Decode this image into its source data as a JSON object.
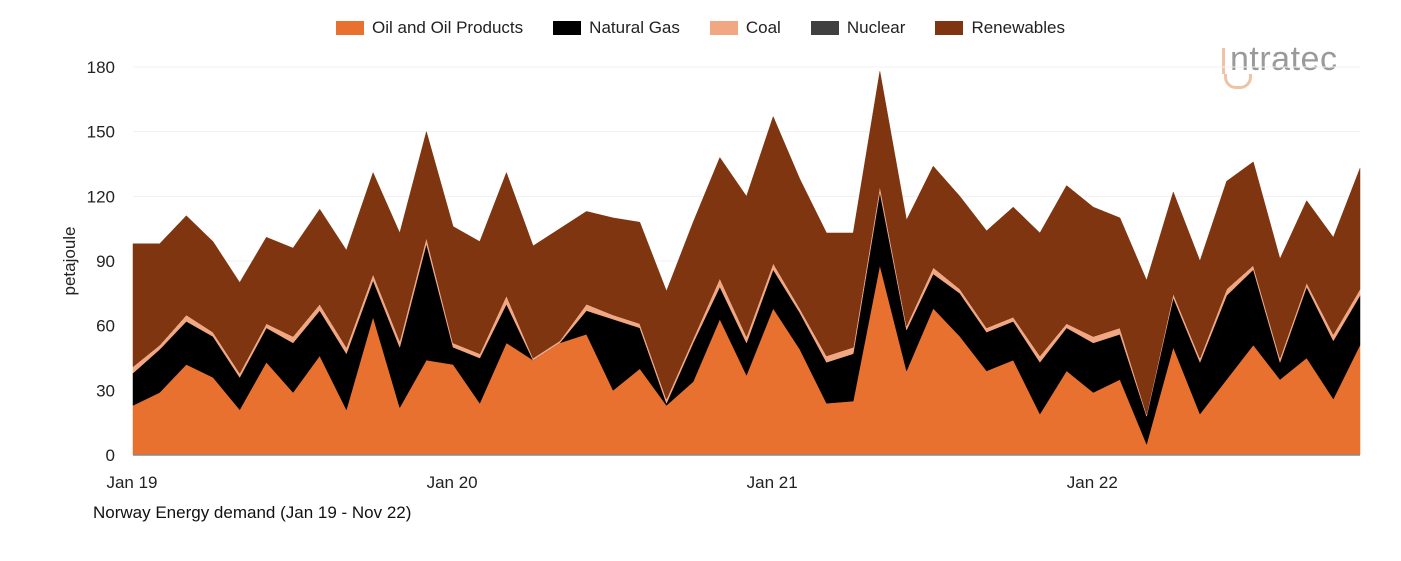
{
  "chart_data": {
    "type": "area",
    "stacked": true,
    "title": "Norway Energy demand (Jan 19 - Nov 22)",
    "xlabel": "",
    "ylabel": "petajoule",
    "ylim": [
      0,
      180
    ],
    "yticks": [
      0,
      30,
      60,
      90,
      120,
      150,
      180
    ],
    "xtick_labels": [
      {
        "label": "Jan 19",
        "month": "2019-01"
      },
      {
        "label": "Jan 20",
        "month": "2020-01"
      },
      {
        "label": "Jan 21",
        "month": "2021-01"
      },
      {
        "label": "Jan 22",
        "month": "2022-01"
      }
    ],
    "grid": true,
    "legend_position": "top",
    "x": [
      "2019-01",
      "2019-02",
      "2019-03",
      "2019-04",
      "2019-05",
      "2019-06",
      "2019-07",
      "2019-08",
      "2019-09",
      "2019-10",
      "2019-11",
      "2019-12",
      "2020-01",
      "2020-02",
      "2020-03",
      "2020-04",
      "2020-05",
      "2020-06",
      "2020-07",
      "2020-08",
      "2020-09",
      "2020-10",
      "2020-11",
      "2020-12",
      "2021-01",
      "2021-02",
      "2021-03",
      "2021-04",
      "2021-05",
      "2021-06",
      "2021-07",
      "2021-08",
      "2021-09",
      "2021-10",
      "2021-11",
      "2021-12",
      "2022-01",
      "2022-02",
      "2022-03",
      "2022-04",
      "2022-05",
      "2022-06",
      "2022-07",
      "2022-08",
      "2022-09",
      "2022-10",
      "2022-11"
    ],
    "series": [
      {
        "name": "Oil and Oil Products",
        "color": "#E8712F",
        "values": [
          23,
          29,
          42,
          36,
          21,
          43,
          29,
          46,
          21,
          64,
          22,
          44,
          42,
          24,
          52,
          44,
          52,
          56,
          30,
          40,
          23,
          34,
          63,
          37,
          68,
          49,
          24,
          25,
          88,
          39,
          68,
          55,
          39,
          44,
          19,
          39,
          29,
          35,
          5,
          50,
          19,
          35,
          51,
          35,
          45,
          26,
          51
        ]
      },
      {
        "name": "Natural Gas",
        "color": "#000000",
        "values": [
          15,
          20,
          20,
          19,
          15,
          16,
          23,
          21,
          26,
          17,
          28,
          54,
          8,
          21,
          18,
          0,
          0,
          11,
          33,
          19,
          1,
          18,
          15,
          15,
          18,
          17,
          19,
          22,
          34,
          19,
          16,
          20,
          18,
          18,
          24,
          20,
          23,
          21,
          13,
          23,
          24,
          39,
          35,
          8,
          33,
          27,
          23
        ]
      },
      {
        "name": "Coal",
        "color": "#F2A783",
        "values": [
          3,
          2,
          3,
          2,
          2,
          2,
          3,
          3,
          3,
          3,
          3,
          3,
          2,
          2,
          4,
          1,
          1,
          3,
          2,
          2,
          2,
          2,
          4,
          3,
          3,
          2,
          3,
          3,
          3,
          2,
          3,
          2,
          2,
          2,
          3,
          2,
          3,
          3,
          1,
          2,
          2,
          3,
          2,
          2,
          2,
          3,
          3
        ]
      },
      {
        "name": "Nuclear",
        "color": "#404040",
        "values": [
          0,
          0,
          0,
          0,
          0,
          0,
          0,
          0,
          0,
          0,
          0,
          0,
          0,
          0,
          0,
          0,
          0,
          0,
          0,
          0,
          0,
          0,
          0,
          0,
          0,
          0,
          0,
          0,
          0,
          0,
          0,
          0,
          0,
          0,
          0,
          0,
          0,
          0,
          0,
          0,
          0,
          0,
          0,
          0,
          0,
          0,
          0
        ]
      },
      {
        "name": "Renewables",
        "color": "#7E3510",
        "values": [
          57,
          47,
          46,
          42,
          42,
          40,
          41,
          44,
          45,
          47,
          50,
          49,
          54,
          52,
          57,
          52,
          52,
          43,
          45,
          47,
          50,
          54,
          56,
          65,
          68,
          60,
          57,
          53,
          53,
          49,
          47,
          43,
          45,
          51,
          57,
          64,
          60,
          51,
          62,
          47,
          45,
          50,
          48,
          46,
          38,
          45,
          56
        ]
      }
    ]
  },
  "logo": {
    "text": "intratec"
  }
}
